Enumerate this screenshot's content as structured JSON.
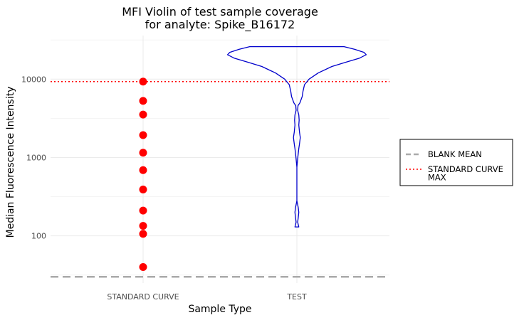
{
  "chart_data": {
    "type": "violin",
    "title": [
      "MFI Violin of test sample coverage",
      "for analyte: Spike_B16172"
    ],
    "xlabel": "Sample Type",
    "ylabel": "Median Fluorescence Intensity",
    "y_scale": "log10",
    "ylim": [
      25,
      36000
    ],
    "y_ticks": [
      100,
      1000,
      10000
    ],
    "y_tick_labels": [
      "100",
      "1000",
      "10000"
    ],
    "categories": [
      "STANDARD CURVE",
      "TEST"
    ],
    "grid": true,
    "legend_position": "right",
    "reference_lines": [
      {
        "name": "BLANK MEAN",
        "y": 30,
        "style": "dashed",
        "color": "#aaaaaa"
      },
      {
        "name": "STANDARD CURVE MAX",
        "y": 9300,
        "style": "dotted",
        "color": "#ff0000"
      }
    ],
    "standard_curve_points": {
      "category": "STANDARD CURVE",
      "color": "#ff0000",
      "values": [
        40,
        106,
        134,
        210,
        390,
        690,
        1150,
        1930,
        3530,
        5280,
        9300
      ]
    },
    "test_violin": {
      "category": "TEST",
      "color": "#0000cc",
      "y_min": 130,
      "y_max": 26000,
      "profile": [
        [
          26000,
          0.62
        ],
        [
          24000,
          0.76
        ],
        [
          22000,
          0.88
        ],
        [
          20500,
          0.91
        ],
        [
          18500,
          0.82
        ],
        [
          16500,
          0.65
        ],
        [
          14500,
          0.46
        ],
        [
          12000,
          0.28
        ],
        [
          10000,
          0.16
        ],
        [
          8500,
          0.1
        ],
        [
          7000,
          0.08
        ],
        [
          6000,
          0.07
        ],
        [
          5000,
          0.04
        ],
        [
          4600,
          0.015
        ],
        [
          4000,
          0.01
        ],
        [
          3500,
          0.025
        ],
        [
          3000,
          0.03
        ],
        [
          2600,
          0.025
        ],
        [
          2100,
          0.035
        ],
        [
          1800,
          0.045
        ],
        [
          1500,
          0.035
        ],
        [
          1300,
          0.025
        ],
        [
          1000,
          0.012
        ],
        [
          750,
          0.0
        ],
        [
          600,
          0.0
        ],
        [
          400,
          0.0
        ],
        [
          280,
          0.0
        ],
        [
          230,
          0.018
        ],
        [
          200,
          0.025
        ],
        [
          170,
          0.018
        ],
        [
          150,
          0.01
        ],
        [
          130,
          0.025
        ]
      ]
    },
    "legend": [
      {
        "label": [
          "BLANK MEAN"
        ],
        "style": "dashed",
        "color": "#aaaaaa"
      },
      {
        "label": [
          "STANDARD CURVE",
          "MAX"
        ],
        "style": "dotted",
        "color": "#ff0000"
      }
    ]
  }
}
